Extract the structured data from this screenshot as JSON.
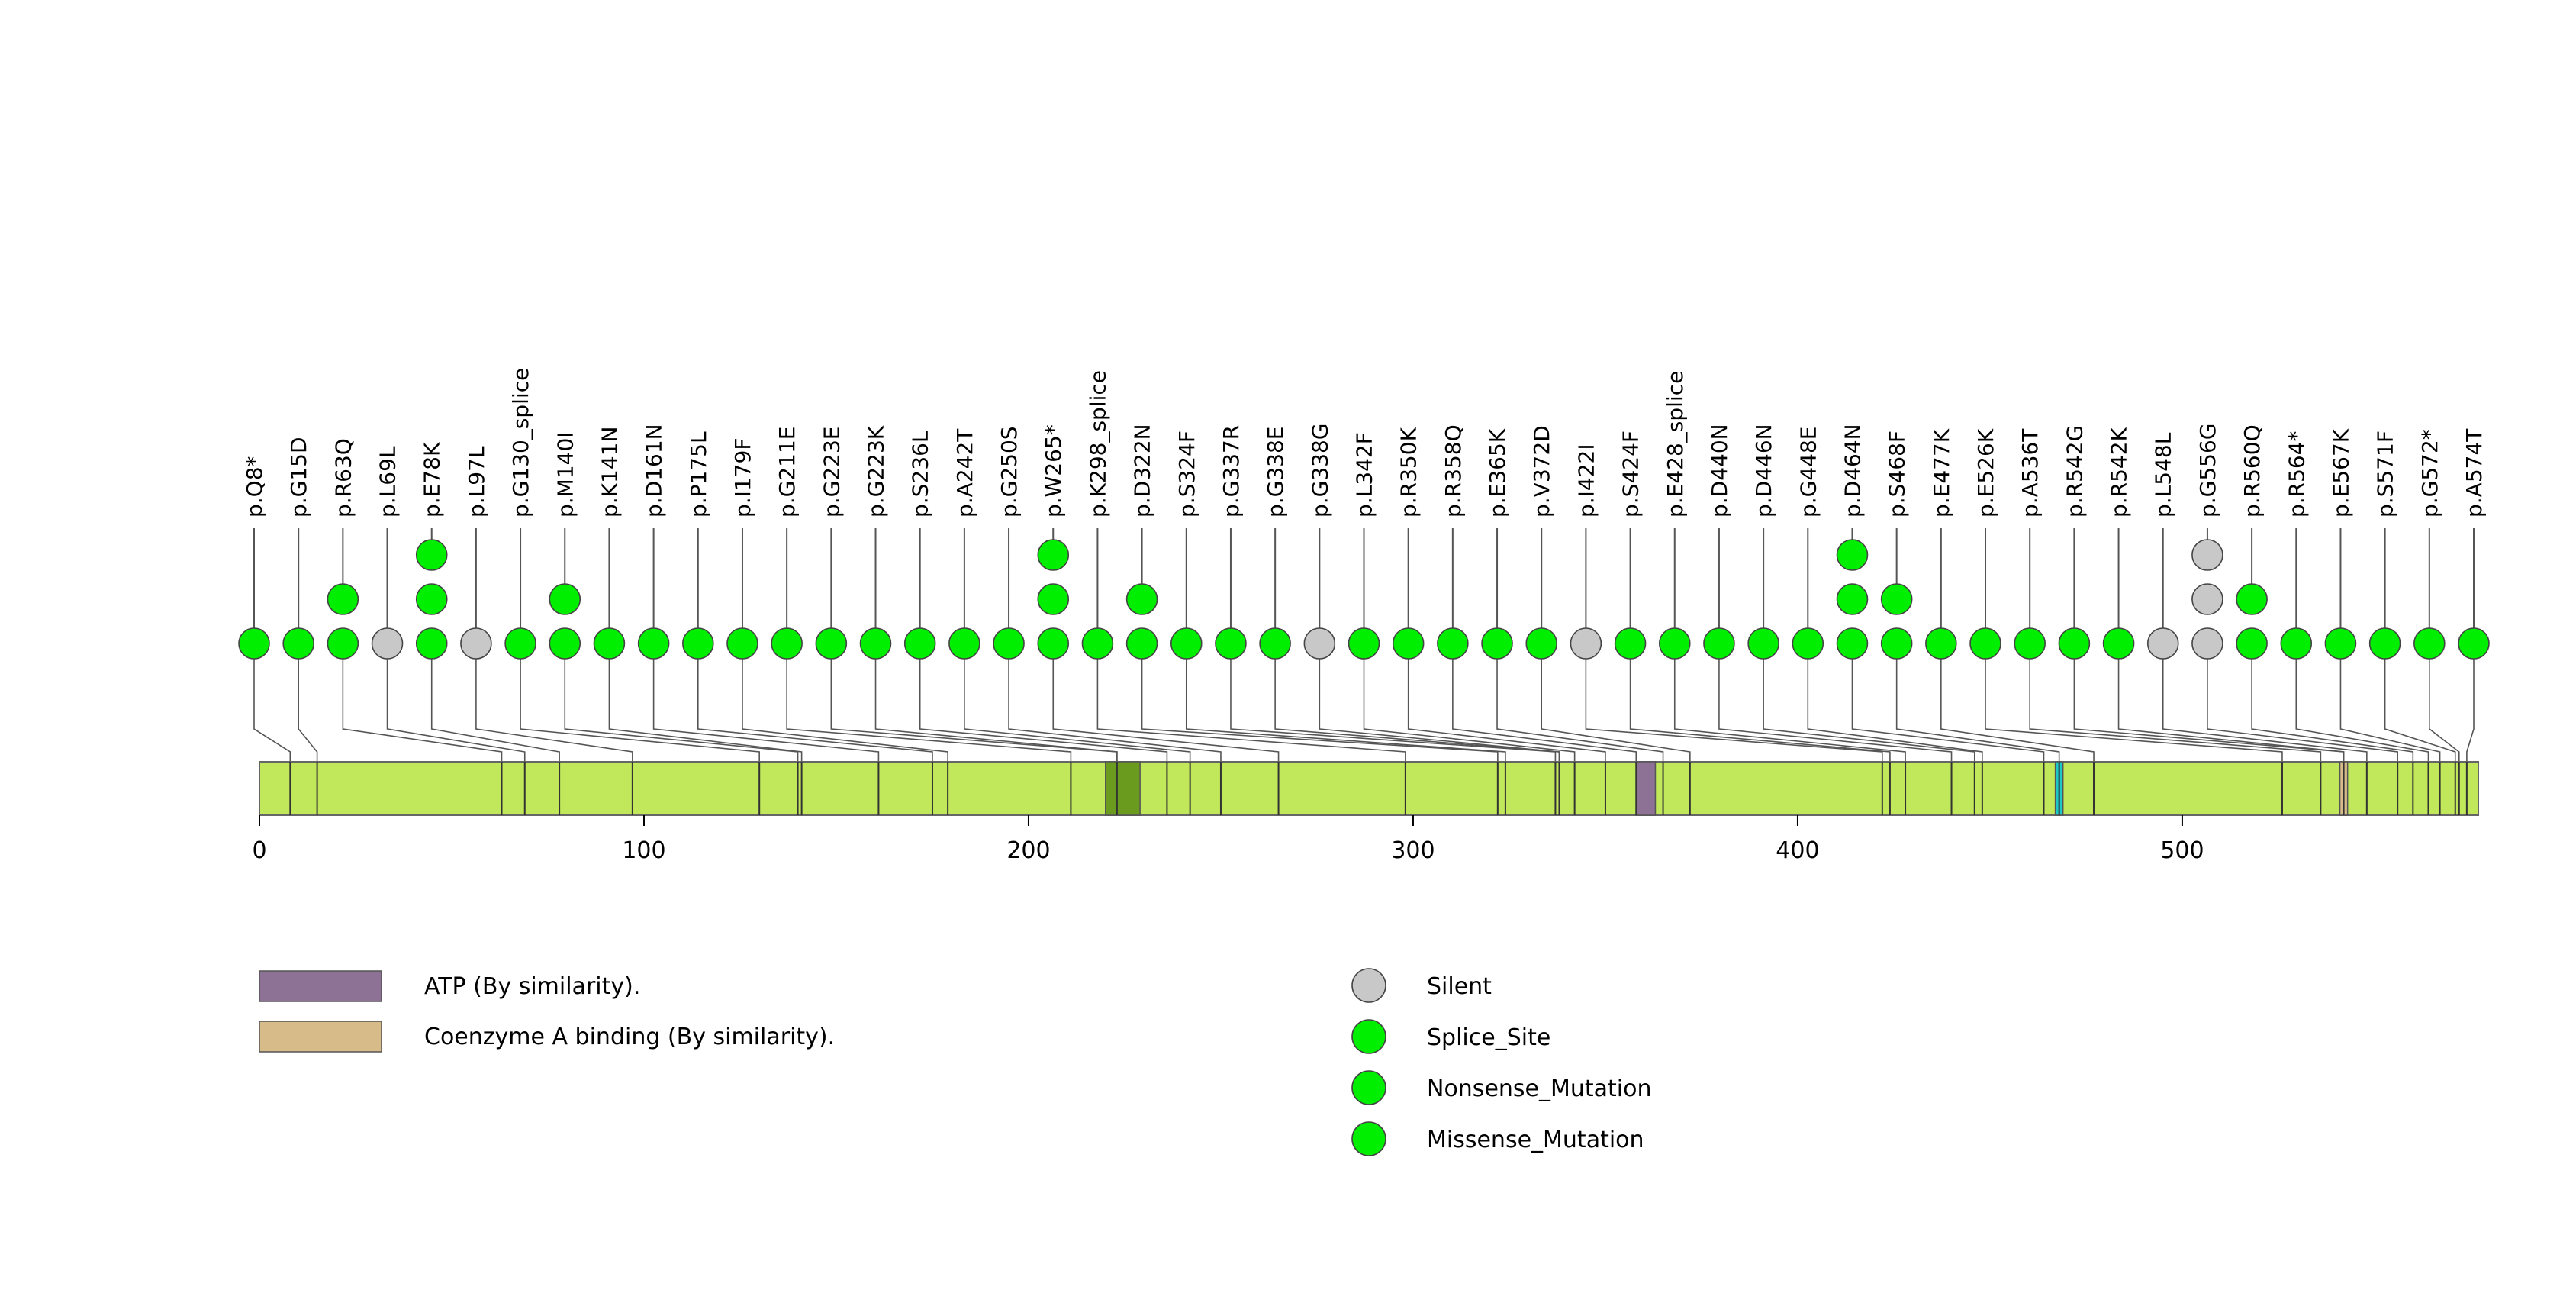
{
  "chart_data": {
    "type": "lollipop",
    "protein_length": 577,
    "axis": {
      "xlim": [
        0,
        577
      ],
      "ticks": [
        0,
        100,
        200,
        300,
        400,
        500
      ]
    },
    "colors": {
      "protein": "#c0e85a",
      "Silent": "#c8c8c8",
      "Splice_Site": "#00ee00",
      "Nonsense_Mutation": "#00ee00",
      "Missense_Mutation": "#00ee00",
      "ATP": "#8e7296",
      "Coenzyme_A": "#d7bc8a",
      "dark_domain": "#6a9a1e",
      "cyan_region": "#1ec8c8"
    },
    "domains": [
      {
        "name": "ATP (By similarity).",
        "start": 358,
        "end": 363,
        "color": "#8e7296"
      },
      {
        "name": "Coenzyme A binding (By similarity).",
        "start": 541,
        "end": 543,
        "color": "#d7bc8a"
      },
      {
        "name": "",
        "start": 220,
        "end": 229,
        "color": "#6a9a1e"
      },
      {
        "name": "",
        "start": 467,
        "end": 469,
        "color": "#1ec8c8"
      }
    ],
    "mutations": [
      {
        "label": "p.Q8*",
        "pos": 8,
        "count": 1,
        "type": "Nonsense_Mutation"
      },
      {
        "label": "p.G15D",
        "pos": 15,
        "count": 1,
        "type": "Missense_Mutation"
      },
      {
        "label": "p.R63Q",
        "pos": 63,
        "count": 2,
        "type": "Missense_Mutation"
      },
      {
        "label": "p.L69L",
        "pos": 69,
        "count": 1,
        "type": "Silent"
      },
      {
        "label": "p.E78K",
        "pos": 78,
        "count": 3,
        "type": "Missense_Mutation"
      },
      {
        "label": "p.L97L",
        "pos": 97,
        "count": 1,
        "type": "Silent"
      },
      {
        "label": "p.G130_splice",
        "pos": 130,
        "count": 1,
        "type": "Splice_Site"
      },
      {
        "label": "p.M140I",
        "pos": 140,
        "count": 2,
        "type": "Missense_Mutation"
      },
      {
        "label": "p.K141N",
        "pos": 141,
        "count": 1,
        "type": "Missense_Mutation"
      },
      {
        "label": "p.D161N",
        "pos": 161,
        "count": 1,
        "type": "Missense_Mutation"
      },
      {
        "label": "p.P175L",
        "pos": 175,
        "count": 1,
        "type": "Missense_Mutation"
      },
      {
        "label": "p.I179F",
        "pos": 179,
        "count": 1,
        "type": "Missense_Mutation"
      },
      {
        "label": "p.G211E",
        "pos": 211,
        "count": 1,
        "type": "Missense_Mutation"
      },
      {
        "label": "p.G223E",
        "pos": 223,
        "count": 1,
        "type": "Missense_Mutation"
      },
      {
        "label": "p.G223K",
        "pos": 223,
        "count": 1,
        "type": "Missense_Mutation"
      },
      {
        "label": "p.S236L",
        "pos": 236,
        "count": 1,
        "type": "Missense_Mutation"
      },
      {
        "label": "p.A242T",
        "pos": 242,
        "count": 1,
        "type": "Missense_Mutation"
      },
      {
        "label": "p.G250S",
        "pos": 250,
        "count": 1,
        "type": "Missense_Mutation"
      },
      {
        "label": "p.W265*",
        "pos": 265,
        "count": 3,
        "type": "Nonsense_Mutation"
      },
      {
        "label": "p.K298_splice",
        "pos": 298,
        "count": 1,
        "type": "Splice_Site"
      },
      {
        "label": "p.D322N",
        "pos": 322,
        "count": 2,
        "type": "Missense_Mutation"
      },
      {
        "label": "p.S324F",
        "pos": 324,
        "count": 1,
        "type": "Missense_Mutation"
      },
      {
        "label": "p.G337R",
        "pos": 337,
        "count": 1,
        "type": "Missense_Mutation"
      },
      {
        "label": "p.G338E",
        "pos": 338,
        "count": 1,
        "type": "Missense_Mutation"
      },
      {
        "label": "p.G338G",
        "pos": 338,
        "count": 1,
        "type": "Silent"
      },
      {
        "label": "p.L342F",
        "pos": 342,
        "count": 1,
        "type": "Missense_Mutation"
      },
      {
        "label": "p.R350K",
        "pos": 350,
        "count": 1,
        "type": "Missense_Mutation"
      },
      {
        "label": "p.R358Q",
        "pos": 358,
        "count": 1,
        "type": "Missense_Mutation"
      },
      {
        "label": "p.E365K",
        "pos": 365,
        "count": 1,
        "type": "Missense_Mutation"
      },
      {
        "label": "p.V372D",
        "pos": 372,
        "count": 1,
        "type": "Missense_Mutation"
      },
      {
        "label": "p.I422I",
        "pos": 422,
        "count": 1,
        "type": "Silent"
      },
      {
        "label": "p.S424F",
        "pos": 424,
        "count": 1,
        "type": "Missense_Mutation"
      },
      {
        "label": "p.E428_splice",
        "pos": 428,
        "count": 1,
        "type": "Splice_Site"
      },
      {
        "label": "p.D440N",
        "pos": 440,
        "count": 1,
        "type": "Missense_Mutation"
      },
      {
        "label": "p.D446N",
        "pos": 446,
        "count": 1,
        "type": "Missense_Mutation"
      },
      {
        "label": "p.G448E",
        "pos": 448,
        "count": 1,
        "type": "Missense_Mutation"
      },
      {
        "label": "p.D464N",
        "pos": 464,
        "count": 3,
        "type": "Missense_Mutation"
      },
      {
        "label": "p.S468F",
        "pos": 468,
        "count": 2,
        "type": "Missense_Mutation"
      },
      {
        "label": "p.E477K",
        "pos": 477,
        "count": 1,
        "type": "Missense_Mutation"
      },
      {
        "label": "p.E526K",
        "pos": 526,
        "count": 1,
        "type": "Missense_Mutation"
      },
      {
        "label": "p.A536T",
        "pos": 536,
        "count": 1,
        "type": "Missense_Mutation"
      },
      {
        "label": "p.R542G",
        "pos": 542,
        "count": 1,
        "type": "Missense_Mutation"
      },
      {
        "label": "p.R542K",
        "pos": 542,
        "count": 1,
        "type": "Missense_Mutation"
      },
      {
        "label": "p.L548L",
        "pos": 548,
        "count": 1,
        "type": "Silent"
      },
      {
        "label": "p.G556G",
        "pos": 556,
        "count": 3,
        "type": "Silent"
      },
      {
        "label": "p.R560Q",
        "pos": 560,
        "count": 2,
        "type": "Missense_Mutation"
      },
      {
        "label": "p.R564*",
        "pos": 564,
        "count": 1,
        "type": "Nonsense_Mutation"
      },
      {
        "label": "p.E567K",
        "pos": 567,
        "count": 1,
        "type": "Missense_Mutation"
      },
      {
        "label": "p.S571F",
        "pos": 571,
        "count": 1,
        "type": "Missense_Mutation"
      },
      {
        "label": "p.G572*",
        "pos": 572,
        "count": 1,
        "type": "Nonsense_Mutation"
      },
      {
        "label": "p.A574T",
        "pos": 574,
        "count": 1,
        "type": "Missense_Mutation"
      }
    ],
    "legend_domains": [
      {
        "label": "ATP (By similarity).",
        "color": "#8e7296"
      },
      {
        "label": "Coenzyme A binding (By similarity).",
        "color": "#d7bc8a"
      }
    ],
    "legend_types": [
      {
        "label": "Silent",
        "color": "#c8c8c8"
      },
      {
        "label": "Splice_Site",
        "color": "#00ee00"
      },
      {
        "label": "Nonsense_Mutation",
        "color": "#00ee00"
      },
      {
        "label": "Missense_Mutation",
        "color": "#00ee00"
      }
    ]
  }
}
